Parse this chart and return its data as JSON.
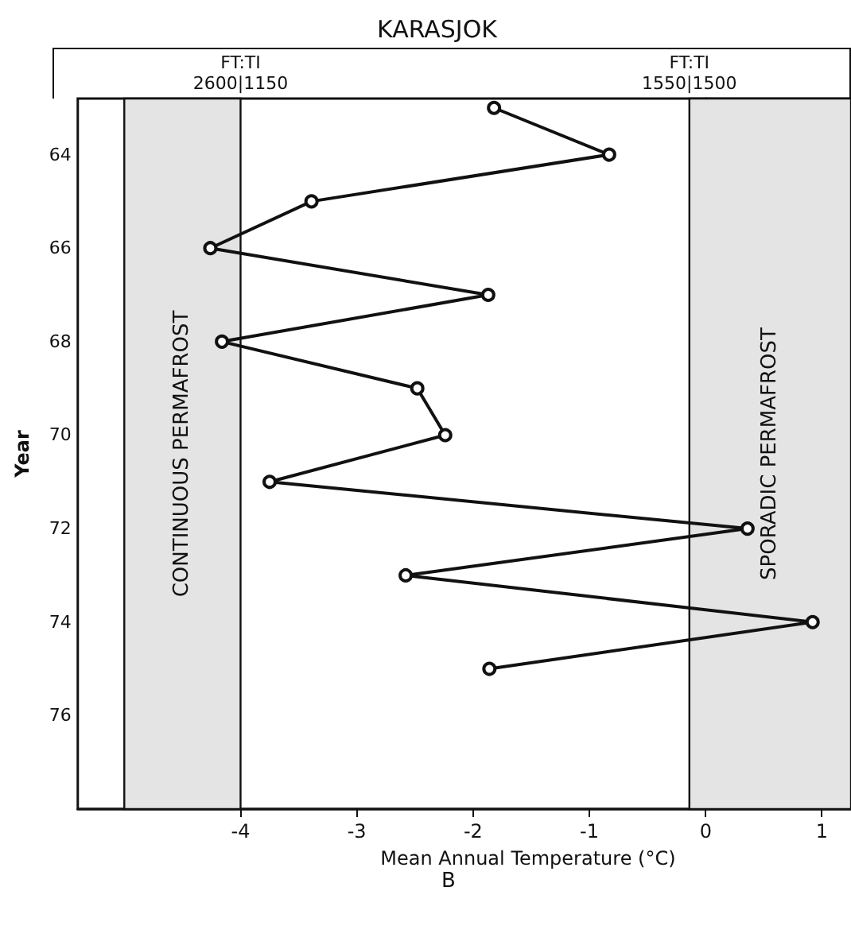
{
  "chart_data": {
    "type": "line",
    "title": "KARASJOK",
    "xlabel": "Mean Annual Temperature (°C)",
    "ylabel": "Year",
    "x": [
      -1.82,
      -0.83,
      -3.39,
      -4.26,
      -1.87,
      -4.16,
      -2.48,
      -2.24,
      -3.75,
      0.36,
      -2.58,
      0.92,
      -1.86
    ],
    "series": [
      {
        "color": "#111111",
        "values": [
          63,
          64,
          65,
          66,
          67,
          68,
          69,
          70,
          71,
          72,
          73,
          74,
          75
        ]
      }
    ],
    "xlim": [
      -5.4,
      1.25
    ],
    "xticks": [
      -4,
      -3,
      -2,
      -1,
      0,
      1
    ],
    "ylim": [
      78,
      62.8
    ],
    "yticks": [
      64,
      66,
      68,
      70,
      72,
      74,
      76
    ],
    "marker": "circle",
    "line_style": "solid",
    "bands": [
      {
        "axis": "x",
        "from": -5.0,
        "to": -4,
        "label": "CONTINUOUS PERMAFROST",
        "color": "#e4e4e4"
      },
      {
        "axis": "x",
        "from": -0.14,
        "to": 1.25,
        "label": "SPORADIC PERMAFROST",
        "color": "#e4e4e4"
      }
    ],
    "annotations": [
      "FT:TI\n2600|1150",
      "FT:TI\n1550|1500",
      "B"
    ]
  }
}
